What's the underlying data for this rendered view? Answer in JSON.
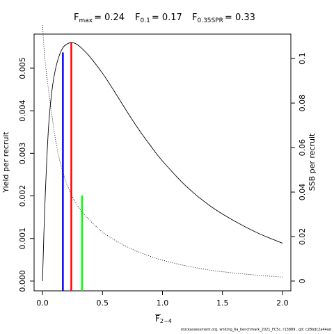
{
  "title": {
    "fmax_label": "F",
    "fmax_sub": "max",
    "fmax_value": "= 0.24",
    "f01_label": "F",
    "f01_sub": "0.1",
    "f01_value": "= 0.17",
    "fspr_label": "F",
    "fspr_sub": "0.35SPR",
    "fspr_value": "= 0.33"
  },
  "axes": {
    "xlabel_main": "F",
    "xlabel_sub": "2−4",
    "ylabel_left": "Yield per recruit",
    "ylabel_right": "SSB per recruit"
  },
  "footer": "stockassessment.org,  whiting_6a_benchmark_2021_FC5c,  r13889 ,  git:  c28bdc2a44ad",
  "colors": {
    "fmax": "#ff0000",
    "f01": "#0000ff",
    "fspr": "#00ff00",
    "curve": "#000000"
  },
  "chart_data": {
    "type": "line",
    "x": [
      0.0,
      0.02,
      0.05,
      0.08,
      0.11,
      0.14,
      0.17,
      0.2,
      0.24,
      0.28,
      0.33,
      0.4,
      0.5,
      0.6,
      0.7,
      0.8,
      0.9,
      1.0,
      1.2,
      1.4,
      1.6,
      1.8,
      2.0
    ],
    "series": [
      {
        "axis": "left",
        "style": "solid",
        "values": [
          0.0,
          0.0018,
          0.0036,
          0.0045,
          0.005,
          0.0053,
          0.00548,
          0.00556,
          0.0056,
          0.00557,
          0.00546,
          0.00525,
          0.00488,
          0.00445,
          0.004,
          0.00357,
          0.00318,
          0.00282,
          0.00222,
          0.00176,
          0.00141,
          0.00112,
          0.00089
        ]
      },
      {
        "axis": "right",
        "style": "dotted",
        "values": [
          0.115,
          0.1,
          0.086,
          0.074,
          0.063,
          0.055,
          0.049,
          0.044,
          0.039,
          0.035,
          0.031,
          0.027,
          0.022,
          0.0185,
          0.0155,
          0.0131,
          0.0111,
          0.0094,
          0.0068,
          0.0049,
          0.0036,
          0.0026,
          0.0018
        ]
      }
    ],
    "reference_lines": [
      {
        "key": "f01",
        "x": 0.17,
        "y": 0.00537,
        "axis": "left",
        "color": "#0000ff"
      },
      {
        "key": "fmax",
        "x": 0.24,
        "y": 0.0056,
        "axis": "left",
        "color": "#ff0000"
      },
      {
        "key": "fspr",
        "x": 0.33,
        "y": 0.0385,
        "axis": "right",
        "color": "#00ff00"
      }
    ],
    "xlim": [
      -0.07,
      2.07
    ],
    "ylim_left": [
      -0.00023,
      0.0058
    ],
    "ylim_right": [
      -0.0044,
      0.111
    ],
    "xticks": [
      0,
      0.5,
      1,
      1.5,
      2
    ],
    "xtick_labels": [
      "0.0",
      "0.5",
      "1.0",
      "1.5",
      "2.0"
    ],
    "yticks_left": [
      0,
      0.001,
      0.002,
      0.003,
      0.004,
      0.005
    ],
    "ytick_labels_left": [
      "0.000",
      "0.001",
      "0.002",
      "0.003",
      "0.004",
      "0.005"
    ],
    "yticks_right": [
      0,
      0.02,
      0.04,
      0.06,
      0.08,
      0.1
    ],
    "ytick_labels_right": [
      "0",
      "0.02",
      "0.04",
      "0.06",
      "0.08",
      "0.1"
    ]
  }
}
